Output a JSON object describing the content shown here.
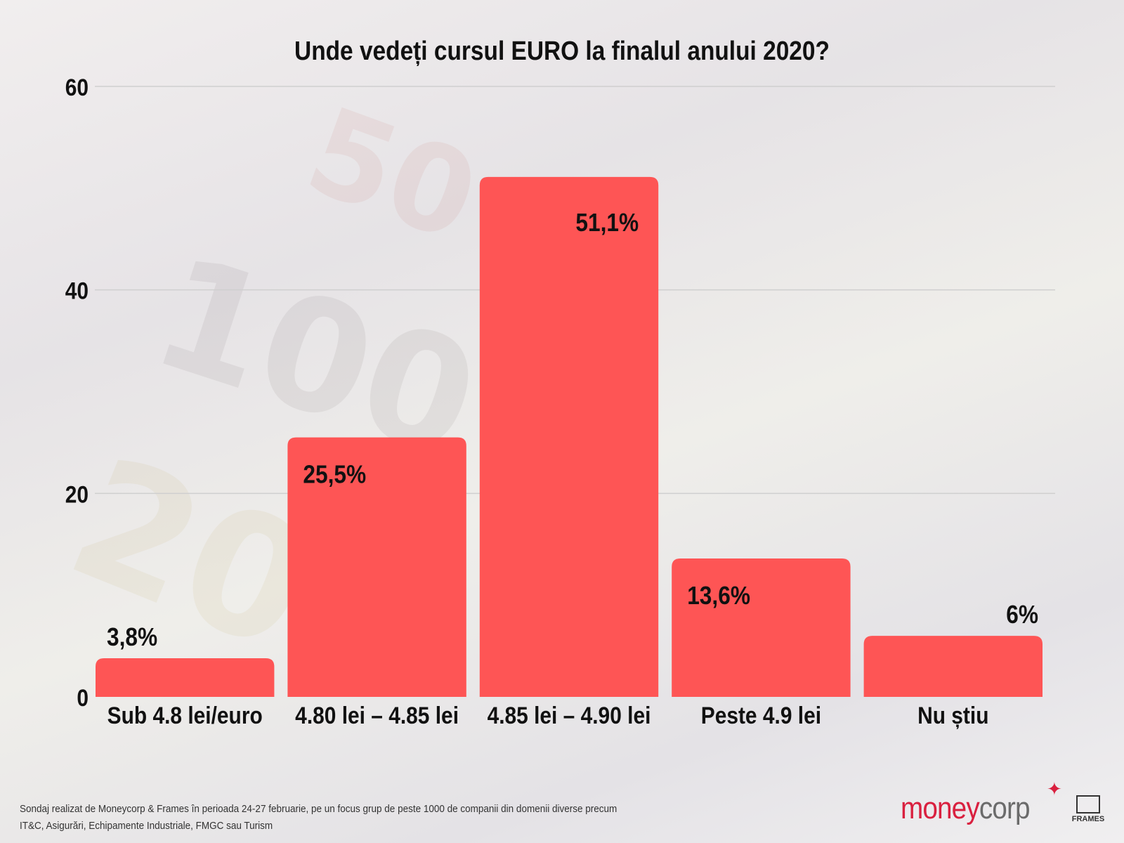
{
  "chart_data": {
    "type": "bar",
    "title": "Unde vedeți cursul EURO la finalul anului 2020?",
    "categories": [
      "Sub 4.8 lei/euro",
      "4.80 lei – 4.85 lei",
      "4.85 lei – 4.90 lei",
      "Peste 4.9 lei",
      "Nu știu"
    ],
    "values": [
      3.8,
      25.5,
      51.1,
      13.6,
      6
    ],
    "data_labels": [
      "3,8%",
      "25,5%",
      "51,1%",
      "13,6%",
      "6%"
    ],
    "yticks": [
      "0",
      "20",
      "40",
      "60"
    ],
    "ytick_values": [
      0,
      20,
      40,
      60
    ],
    "ylim": [
      0,
      60
    ],
    "xlabel": "",
    "ylabel": "",
    "grid": true,
    "bar_color": "#fe5555"
  },
  "footer": {
    "line1": "Sondaj realizat de Moneycorp & Frames  în perioada 24-27 februarie, pe un focus grup de peste 1000 de companii din domenii diverse precum",
    "line2": "IT&C, Asigurări, Echipamente Industriale, FMGC sau Turism"
  },
  "logos": {
    "moneycorp_a": "money",
    "moneycorp_b": "corp",
    "frames": "FRAMES"
  }
}
